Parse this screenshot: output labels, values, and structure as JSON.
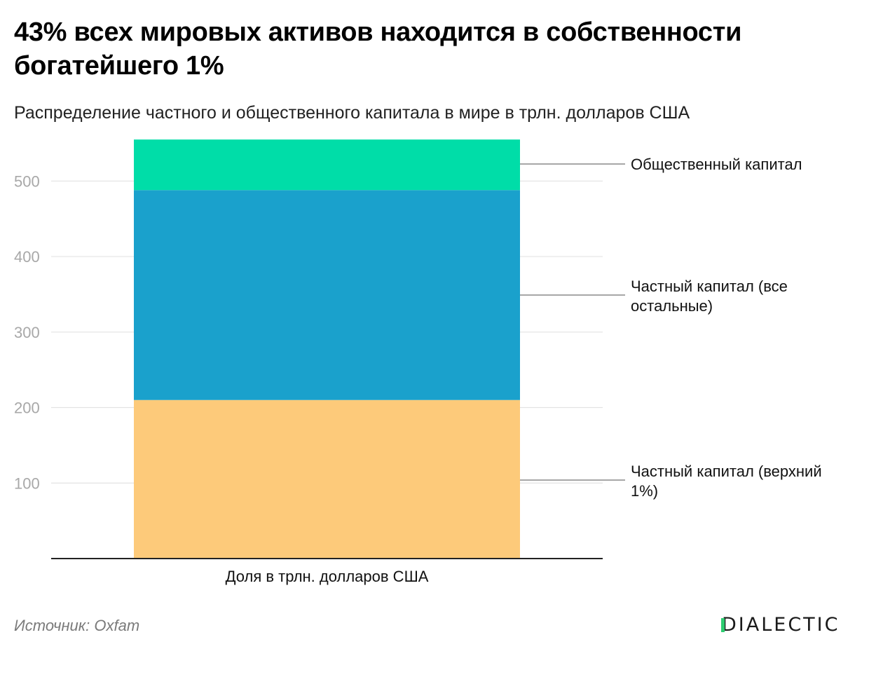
{
  "title": "43% всех мировых активов находится в собственности богатейшего 1%",
  "subtitle": "Распределение частного и общественного капитала в мире в трлн. долларов США",
  "source": "Источник: Oxfam",
  "logo": "DIALECTIC",
  "chart_data": {
    "type": "bar",
    "stacked": true,
    "categories": [
      "Доля в трлн. долларов США"
    ],
    "xlabel": "Доля в трлн. долларов США",
    "ylabel": "",
    "ylim": [
      0,
      556
    ],
    "yticks": [
      100,
      200,
      300,
      400,
      500
    ],
    "grid": true,
    "legend": "right, inline labels",
    "series": [
      {
        "name": "Частный капитал (верхний 1%)",
        "values": [
          210
        ],
        "color": "#fdca7a"
      },
      {
        "name": "Частный капитал (все остальные)",
        "values": [
          278
        ],
        "color": "#1aa1cc"
      },
      {
        "name": "Общественный капитал",
        "values": [
          67
        ],
        "color": "#00dda8"
      }
    ]
  }
}
